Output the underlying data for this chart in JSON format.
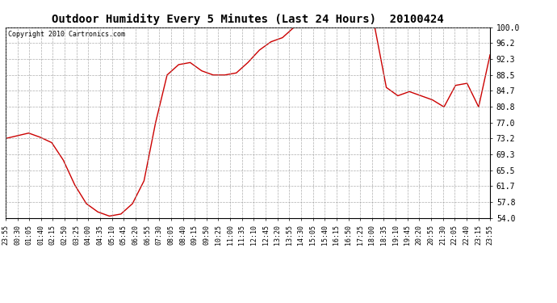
{
  "title": "Outdoor Humidity Every 5 Minutes (Last 24 Hours)  20100424",
  "copyright": "Copyright 2010 Cartronics.com",
  "line_color": "#cc0000",
  "bg_color": "#ffffff",
  "grid_color": "#999999",
  "ylim": [
    54.0,
    100.0
  ],
  "yticks": [
    54.0,
    57.8,
    61.7,
    65.5,
    69.3,
    73.2,
    77.0,
    80.8,
    84.7,
    88.5,
    92.3,
    96.2,
    100.0
  ],
  "x_labels": [
    "23:55",
    "00:30",
    "01:05",
    "01:40",
    "02:15",
    "02:50",
    "03:25",
    "04:00",
    "04:35",
    "05:10",
    "05:45",
    "06:20",
    "06:55",
    "07:30",
    "08:05",
    "08:40",
    "09:15",
    "09:50",
    "10:25",
    "11:00",
    "11:35",
    "12:10",
    "12:45",
    "13:20",
    "13:55",
    "14:30",
    "15:05",
    "15:40",
    "16:15",
    "16:50",
    "17:25",
    "18:00",
    "18:35",
    "19:10",
    "19:45",
    "20:20",
    "20:55",
    "21:30",
    "22:05",
    "22:40",
    "23:15",
    "23:55"
  ],
  "humidity_data": [
    [
      0,
      73.2
    ],
    [
      2,
      74.5
    ],
    [
      3,
      73.5
    ],
    [
      4,
      72.2
    ],
    [
      5,
      68.0
    ],
    [
      6,
      62.0
    ],
    [
      7,
      57.5
    ],
    [
      8,
      55.5
    ],
    [
      9,
      54.5
    ],
    [
      10,
      55.0
    ],
    [
      11,
      57.5
    ],
    [
      12,
      63.0
    ],
    [
      13,
      77.0
    ],
    [
      14,
      88.5
    ],
    [
      15,
      91.0
    ],
    [
      16,
      91.5
    ],
    [
      17,
      89.5
    ],
    [
      18,
      88.5
    ],
    [
      19,
      88.5
    ],
    [
      20,
      89.0
    ],
    [
      21,
      91.5
    ],
    [
      22,
      94.5
    ],
    [
      23,
      96.5
    ],
    [
      24,
      97.5
    ],
    [
      25,
      100.0
    ],
    [
      26,
      100.0
    ],
    [
      27,
      100.0
    ],
    [
      28,
      100.0
    ],
    [
      29,
      100.0
    ],
    [
      30,
      100.0
    ],
    [
      31,
      100.0
    ],
    [
      32,
      100.0
    ],
    [
      33,
      85.5
    ],
    [
      34,
      83.5
    ],
    [
      35,
      84.5
    ],
    [
      36,
      83.5
    ],
    [
      37,
      82.5
    ],
    [
      38,
      80.8
    ],
    [
      39,
      86.0
    ],
    [
      40,
      86.5
    ],
    [
      41,
      80.8
    ],
    [
      42,
      93.5
    ]
  ],
  "title_fontsize": 10,
  "copyright_fontsize": 6,
  "ytick_fontsize": 7,
  "xtick_fontsize": 6
}
